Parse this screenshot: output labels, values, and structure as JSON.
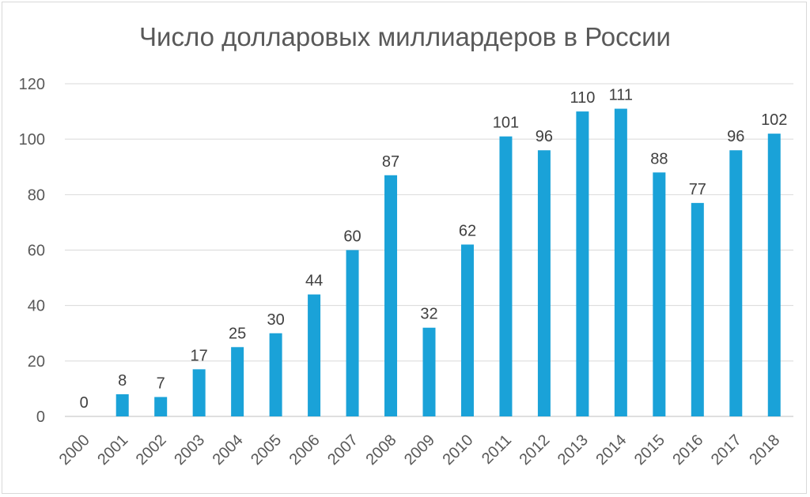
{
  "chart_data": {
    "type": "bar",
    "title": "Число долларовых миллиардеров в России",
    "xlabel": "",
    "ylabel": "",
    "categories": [
      "2000",
      "2001",
      "2002",
      "2003",
      "2004",
      "2005",
      "2006",
      "2007",
      "2008",
      "2009",
      "2010",
      "2011",
      "2012",
      "2013",
      "2014",
      "2015",
      "2016",
      "2017",
      "2018"
    ],
    "values": [
      0,
      8,
      7,
      17,
      25,
      30,
      44,
      60,
      87,
      32,
      62,
      101,
      96,
      110,
      111,
      88,
      77,
      96,
      102
    ],
    "ylim": [
      0,
      120
    ],
    "yticks": [
      0,
      20,
      40,
      60,
      80,
      100,
      120
    ],
    "grid": true,
    "legend": "none",
    "bar_color": "#1aa2d8",
    "data_labels": true
  }
}
